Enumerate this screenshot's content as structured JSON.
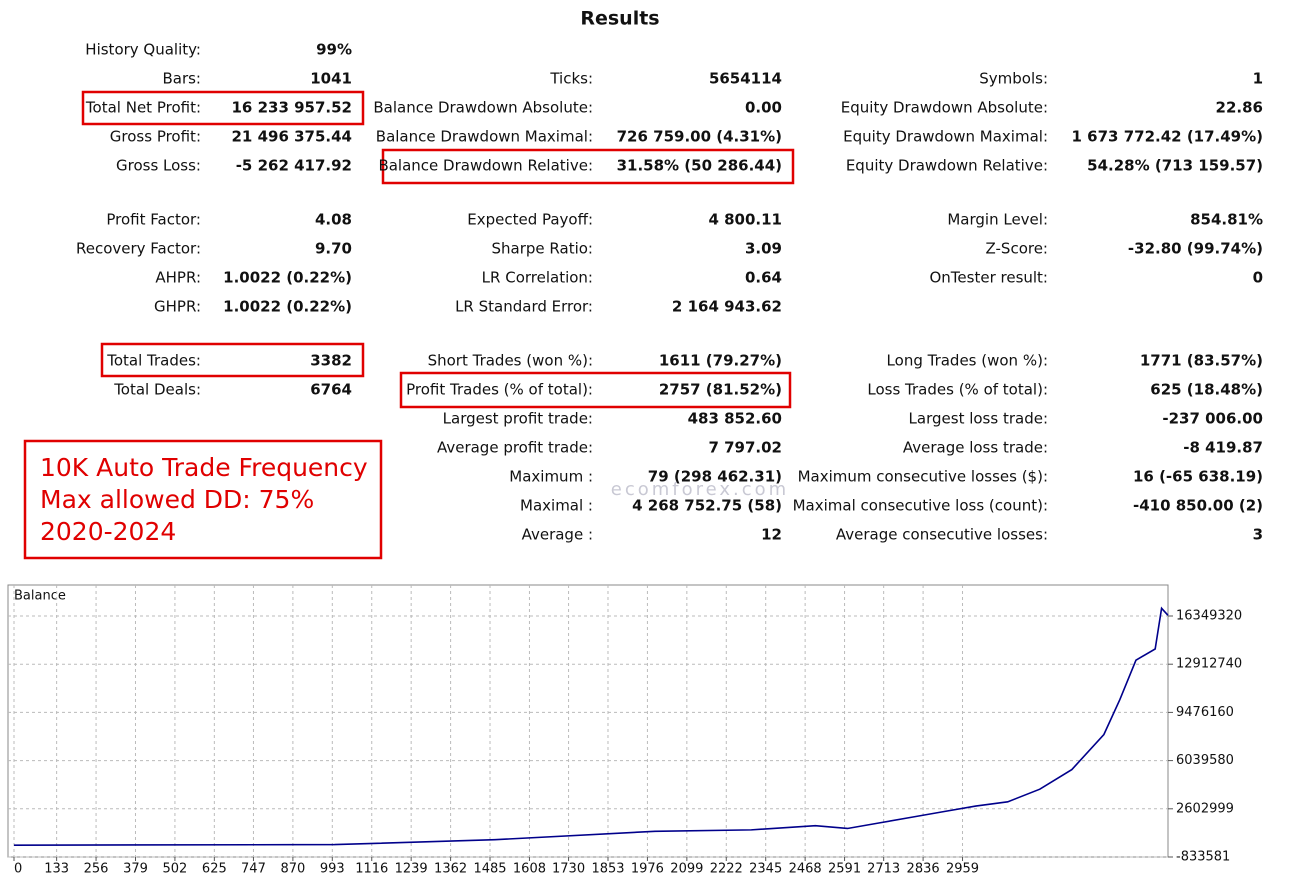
{
  "header": {
    "title": "Results"
  },
  "stats": {
    "rows": [
      [
        {
          "label": "History Quality:",
          "value": "99%"
        },
        null,
        null
      ],
      [
        {
          "label": "Bars:",
          "value": "1041"
        },
        {
          "label": "Ticks:",
          "value": "5654114"
        },
        {
          "label": "Symbols:",
          "value": "1"
        }
      ],
      [
        {
          "label": "Total Net Profit:",
          "value": "16 233 957.52"
        },
        {
          "label": "Balance Drawdown Absolute:",
          "value": "0.00"
        },
        {
          "label": "Equity Drawdown Absolute:",
          "value": "22.86"
        }
      ],
      [
        {
          "label": "Gross Profit:",
          "value": "21 496 375.44"
        },
        {
          "label": "Balance Drawdown Maximal:",
          "value": "726 759.00 (4.31%)"
        },
        {
          "label": "Equity Drawdown Maximal:",
          "value": "1 673 772.42 (17.49%)"
        }
      ],
      [
        {
          "label": "Gross Loss:",
          "value": "-5 262 417.92"
        },
        {
          "label": "Balance Drawdown Relative:",
          "value": "31.58% (50 286.44)"
        },
        {
          "label": "Equity Drawdown Relative:",
          "value": "54.28% (713 159.57)"
        }
      ],
      [
        {
          "label": "Profit Factor:",
          "value": "4.08"
        },
        {
          "label": "Expected Payoff:",
          "value": "4 800.11"
        },
        {
          "label": "Margin Level:",
          "value": "854.81%"
        }
      ],
      [
        {
          "label": "Recovery Factor:",
          "value": "9.70"
        },
        {
          "label": "Sharpe Ratio:",
          "value": "3.09"
        },
        {
          "label": "Z-Score:",
          "value": "-32.80 (99.74%)"
        }
      ],
      [
        {
          "label": "AHPR:",
          "value": "1.0022 (0.22%)"
        },
        {
          "label": "LR Correlation:",
          "value": "0.64"
        },
        {
          "label": "OnTester result:",
          "value": "0"
        }
      ],
      [
        {
          "label": "GHPR:",
          "value": "1.0022 (0.22%)"
        },
        {
          "label": "LR Standard Error:",
          "value": "2 164 943.62"
        },
        null
      ],
      [
        {
          "label": "Total Trades:",
          "value": "3382"
        },
        {
          "label": "Short Trades (won %):",
          "value": "1611 (79.27%)"
        },
        {
          "label": "Long Trades (won %):",
          "value": "1771 (83.57%)"
        }
      ],
      [
        {
          "label": "Total Deals:",
          "value": "6764"
        },
        {
          "label": "Profit Trades (% of total):",
          "value": "2757 (81.52%)"
        },
        {
          "label": "Loss Trades (% of total):",
          "value": "625 (18.48%)"
        }
      ],
      [
        null,
        {
          "label": "Largest profit trade:",
          "value": "483 852.60"
        },
        {
          "label": "Largest loss trade:",
          "value": "-237 006.00"
        }
      ],
      [
        null,
        {
          "label": "Average profit trade:",
          "value": "7 797.02"
        },
        {
          "label": "Average loss trade:",
          "value": "-8 419.87"
        }
      ],
      [
        null,
        {
          "label": "Maximum :",
          "value": "79 (298 462.31)"
        },
        {
          "label": "Maximum consecutive losses ($):",
          "value": "16 (-65 638.19)"
        }
      ],
      [
        null,
        {
          "label": "Maximal :",
          "value": "4 268 752.75 (58)"
        },
        {
          "label": "Maximal consecutive loss (count):",
          "value": "-410 850.00 (2)"
        }
      ],
      [
        null,
        {
          "label": "Average :",
          "value": "12"
        },
        {
          "label": "Average consecutive losses:",
          "value": "3"
        }
      ]
    ]
  },
  "annotation": {
    "lines": [
      "10K Auto Trade Frequency",
      "Max allowed DD: 75%",
      "2020-2024"
    ]
  },
  "watermark": "ecomforex.com",
  "chart_data": {
    "type": "line",
    "title": "Balance",
    "x": [
      0,
      1000,
      1500,
      2000,
      2300,
      2500,
      2600,
      2700,
      2800,
      2900,
      3000,
      3100,
      3200,
      3300,
      3400,
      3450,
      3500,
      3560,
      3580,
      3600
    ],
    "series": [
      {
        "name": "Balance",
        "color": "#00008b",
        "values": [
          10000,
          50000,
          400000,
          1000000,
          1100000,
          1400000,
          1200000,
          1600000,
          2000000,
          2400000,
          2800000,
          3100000,
          4000000,
          5400000,
          7900000,
          10400000,
          13200000,
          14000000,
          16900000,
          16400000
        ]
      }
    ],
    "xlim": [
      0,
      3600
    ],
    "xticks": [
      0,
      133,
      256,
      379,
      502,
      625,
      747,
      870,
      993,
      1116,
      1239,
      1362,
      1485,
      1608,
      1730,
      1853,
      1976,
      2099,
      2222,
      2345,
      2468,
      2591,
      2713,
      2836,
      2959
    ],
    "ylim": [
      -833581,
      18560000
    ],
    "yticks": [
      -833581,
      2602999,
      6039580,
      9476160,
      12912740,
      16349320
    ],
    "grid": true
  }
}
